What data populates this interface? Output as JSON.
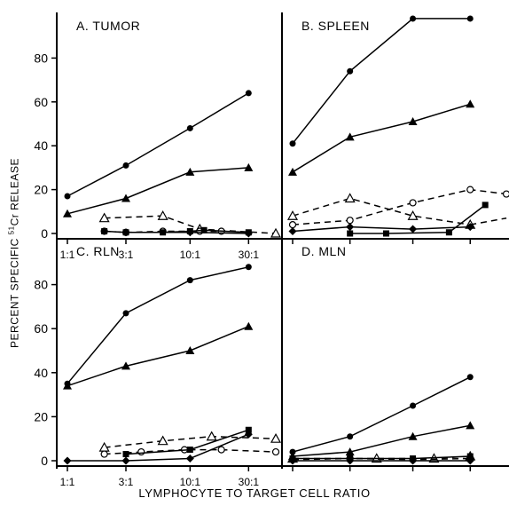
{
  "figure": {
    "ylabel_parts": {
      "prefix": "PERCENT SPECIFIC ",
      "sup": "51",
      "suffix": "Cr RELEASE"
    },
    "xlabel": "LYMPHOCYTE TO TARGET CELL RATIO"
  },
  "chart_data": [
    {
      "type": "line",
      "title": "A. TUMOR",
      "x_ticks": [
        "1:1",
        "3:1",
        "10:1",
        "30:1"
      ],
      "y_ticks": [
        0,
        20,
        40,
        60,
        80
      ],
      "ylim": [
        -2,
        98
      ],
      "x_scale": "log",
      "series": [
        {
          "marker": "filled-circle",
          "dash": false,
          "points": [
            [
              1,
              17
            ],
            [
              3,
              31
            ],
            [
              10,
              48
            ],
            [
              30,
              64
            ]
          ]
        },
        {
          "marker": "filled-triangle",
          "dash": false,
          "points": [
            [
              1,
              9
            ],
            [
              3,
              16
            ],
            [
              10,
              28
            ],
            [
              30,
              30
            ]
          ]
        },
        {
          "marker": "open-triangle",
          "dash": true,
          "points": [
            [
              2,
              7
            ],
            [
              6,
              8
            ],
            [
              12,
              2
            ],
            [
              50,
              0
            ]
          ]
        },
        {
          "marker": "open-circle",
          "dash": true,
          "points": [
            [
              2,
              1
            ],
            [
              3,
              0.5
            ],
            [
              6,
              1
            ],
            [
              12,
              1
            ],
            [
              18,
              1
            ]
          ]
        },
        {
          "marker": "filled-square",
          "dash": false,
          "points": [
            [
              2,
              1
            ],
            [
              3,
              0.5
            ],
            [
              6,
              0.5
            ],
            [
              10,
              1
            ],
            [
              13,
              1.5
            ],
            [
              30,
              0.5
            ]
          ]
        },
        {
          "marker": "filled-diamond",
          "dash": false,
          "points": [
            [
              3,
              0.5
            ],
            [
              10,
              0.5
            ],
            [
              30,
              0
            ]
          ]
        }
      ]
    },
    {
      "type": "line",
      "title": "B. SPLEEN",
      "x_ticks": [],
      "y_ticks": [],
      "ylim": [
        -2,
        98
      ],
      "x_scale": "log",
      "series": [
        {
          "marker": "filled-circle",
          "dash": false,
          "points": [
            [
              1,
              41
            ],
            [
              3,
              74
            ],
            [
              10,
              98
            ],
            [
              30,
              98
            ]
          ]
        },
        {
          "marker": "filled-triangle",
          "dash": false,
          "points": [
            [
              1,
              28
            ],
            [
              3,
              44
            ],
            [
              10,
              51
            ],
            [
              30,
              59
            ]
          ]
        },
        {
          "marker": "open-triangle",
          "dash": true,
          "points": [
            [
              1,
              8
            ],
            [
              3,
              16
            ],
            [
              10,
              8
            ],
            [
              30,
              4
            ]
          ]
        },
        {
          "marker": "open-circle",
          "dash": true,
          "points": [
            [
              1,
              4
            ],
            [
              3,
              6
            ],
            [
              10,
              14
            ],
            [
              30,
              20
            ],
            [
              60,
              18
            ]
          ]
        },
        {
          "marker": "filled-square",
          "dash": false,
          "points": [
            [
              3,
              0
            ],
            [
              6,
              0
            ],
            [
              20,
              0.5
            ],
            [
              40,
              13
            ]
          ]
        },
        {
          "marker": "filled-diamond",
          "dash": false,
          "points": [
            [
              1,
              1
            ],
            [
              3,
              3
            ],
            [
              10,
              2
            ],
            [
              30,
              3
            ]
          ]
        },
        {
          "marker": "none",
          "dash": true,
          "points": [
            [
              30,
              4
            ],
            [
              60,
              7
            ]
          ]
        }
      ]
    },
    {
      "type": "line",
      "title": "C. RLN",
      "x_ticks": [
        "1:1",
        "3:1",
        "10:1",
        "30:1"
      ],
      "y_ticks": [
        0,
        20,
        40,
        60,
        80
      ],
      "ylim": [
        -2,
        98
      ],
      "x_scale": "log",
      "series": [
        {
          "marker": "filled-circle",
          "dash": false,
          "points": [
            [
              1,
              35
            ],
            [
              3,
              67
            ],
            [
              10,
              82
            ],
            [
              30,
              88
            ]
          ]
        },
        {
          "marker": "filled-triangle",
          "dash": false,
          "points": [
            [
              1,
              34
            ],
            [
              3,
              43
            ],
            [
              10,
              50
            ],
            [
              30,
              61
            ]
          ]
        },
        {
          "marker": "open-triangle",
          "dash": true,
          "points": [
            [
              2,
              6
            ],
            [
              6,
              9
            ],
            [
              15,
              11
            ],
            [
              50,
              10
            ]
          ]
        },
        {
          "marker": "open-circle",
          "dash": true,
          "points": [
            [
              2,
              3
            ],
            [
              4,
              4
            ],
            [
              9,
              5
            ],
            [
              18,
              5
            ],
            [
              50,
              4
            ]
          ]
        },
        {
          "marker": "filled-square",
          "dash": false,
          "points": [
            [
              3,
              3
            ],
            [
              10,
              5
            ],
            [
              30,
              14
            ]
          ]
        },
        {
          "marker": "filled-diamond",
          "dash": false,
          "points": [
            [
              1,
              0
            ],
            [
              3,
              0
            ],
            [
              10,
              1
            ],
            [
              30,
              12
            ]
          ]
        }
      ]
    },
    {
      "type": "line",
      "title": "D. MLN",
      "x_ticks": [],
      "y_ticks": [],
      "ylim": [
        -2,
        98
      ],
      "x_scale": "log",
      "series": [
        {
          "marker": "filled-circle",
          "dash": false,
          "points": [
            [
              1,
              4
            ],
            [
              3,
              11
            ],
            [
              10,
              25
            ],
            [
              30,
              38
            ]
          ]
        },
        {
          "marker": "filled-triangle",
          "dash": false,
          "points": [
            [
              1,
              2
            ],
            [
              3,
              4
            ],
            [
              10,
              11
            ],
            [
              30,
              16
            ]
          ]
        },
        {
          "marker": "open-triangle",
          "dash": true,
          "points": [
            [
              1,
              1
            ],
            [
              5,
              1
            ],
            [
              15,
              1
            ],
            [
              30,
              2
            ]
          ]
        },
        {
          "marker": "open-circle",
          "dash": true,
          "points": [
            [
              1,
              0.5
            ],
            [
              3,
              1
            ],
            [
              10,
              0.5
            ],
            [
              30,
              1
            ]
          ]
        },
        {
          "marker": "filled-square",
          "dash": false,
          "points": [
            [
              1,
              1
            ],
            [
              3,
              1
            ],
            [
              10,
              1
            ],
            [
              30,
              2
            ]
          ]
        },
        {
          "marker": "filled-diamond",
          "dash": false,
          "points": [
            [
              1,
              0
            ],
            [
              3,
              0
            ],
            [
              10,
              0
            ],
            [
              30,
              0
            ]
          ]
        }
      ]
    }
  ]
}
